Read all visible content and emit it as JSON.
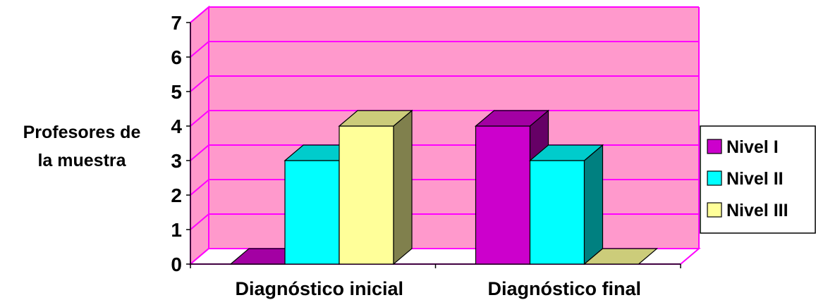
{
  "chart_data": {
    "type": "bar",
    "title": "",
    "xlabel": "",
    "ylabel_lines": [
      "Profesores de",
      "la muestra"
    ],
    "categories": [
      "Diagnóstico inicial",
      "Diagnóstico final"
    ],
    "series": [
      {
        "name": "Nivel I",
        "values": [
          0,
          4
        ],
        "color": "#cc00cc"
      },
      {
        "name": "Nivel II",
        "values": [
          3,
          3
        ],
        "color": "#00ffff"
      },
      {
        "name": "Nivel III",
        "values": [
          4,
          0
        ],
        "color": "#ffff99"
      }
    ],
    "ylim": [
      0,
      7
    ],
    "yticks": [
      "0",
      "1",
      "2",
      "3",
      "4",
      "5",
      "6",
      "7"
    ],
    "grid": true,
    "legend_position": "right",
    "wall_color": "#ff99cc",
    "grid_color": "#ff00ff"
  }
}
